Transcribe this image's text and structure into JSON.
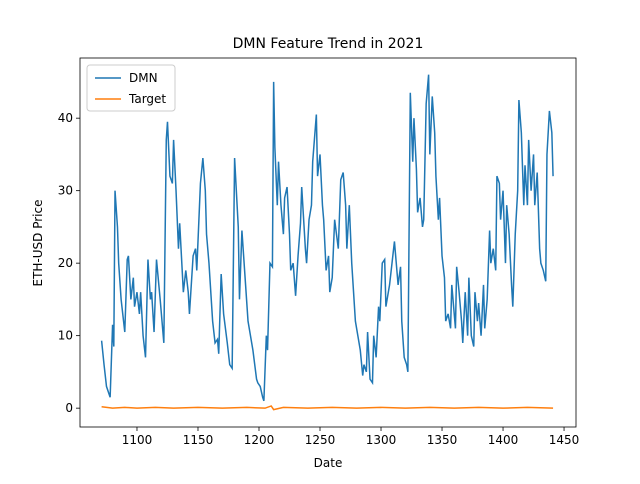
{
  "chart_data": {
    "type": "line",
    "title": "DMN Feature Trend in 2021",
    "x_label": "Date",
    "y_label": "ETH-USD Price",
    "xlim": [
      1053.3,
      1459.8
    ],
    "ylim": [
      -2.6,
      48.3
    ],
    "xticks": [
      1100,
      1150,
      1200,
      1250,
      1300,
      1350,
      1400,
      1450
    ],
    "yticks": [
      0,
      10,
      20,
      30,
      40
    ],
    "legend": "upper left",
    "series": [
      {
        "name": "DMN",
        "color": "#1f77b4",
        "x": [
          1071,
          1073,
          1075,
          1078,
          1080,
          1081,
          1082,
          1084,
          1085,
          1087,
          1089,
          1090,
          1092,
          1093,
          1095,
          1097,
          1098,
          1100,
          1102,
          1103,
          1105,
          1107,
          1109,
          1111,
          1112,
          1114,
          1116,
          1119,
          1122,
          1124,
          1125,
          1127,
          1129,
          1130,
          1132,
          1134,
          1135,
          1138,
          1140,
          1142,
          1143,
          1146,
          1148,
          1149,
          1152,
          1154,
          1156,
          1157,
          1159,
          1162,
          1164,
          1166,
          1167,
          1169,
          1171,
          1174,
          1176,
          1178,
          1180,
          1183,
          1184,
          1186,
          1189,
          1191,
          1193,
          1195,
          1198,
          1199,
          1201,
          1203,
          1204,
          1206,
          1207,
          1209,
          1211,
          1212,
          1213,
          1215,
          1216,
          1218,
          1220,
          1221,
          1223,
          1225,
          1226,
          1228,
          1230,
          1232,
          1234,
          1235,
          1238,
          1239,
          1241,
          1243,
          1244,
          1247,
          1248,
          1250,
          1252,
          1253,
          1255,
          1257,
          1258,
          1260,
          1262,
          1265,
          1267,
          1269,
          1271,
          1272,
          1274,
          1276,
          1279,
          1281,
          1283,
          1285,
          1286,
          1288,
          1289,
          1291,
          1293,
          1294,
          1296,
          1298,
          1299,
          1301,
          1303,
          1304,
          1306,
          1307,
          1309,
          1311,
          1312,
          1314,
          1316,
          1317,
          1319,
          1321,
          1322,
          1324,
          1326,
          1327,
          1329,
          1330,
          1332,
          1334,
          1335,
          1337,
          1339,
          1340,
          1342,
          1344,
          1345,
          1347,
          1348,
          1350,
          1352,
          1353,
          1355,
          1357,
          1358,
          1361,
          1362,
          1364,
          1366,
          1367,
          1369,
          1371,
          1372,
          1374,
          1376,
          1377,
          1379,
          1380,
          1382,
          1384,
          1385,
          1387,
          1389,
          1390,
          1392,
          1394,
          1395,
          1397,
          1398,
          1400,
          1402,
          1403,
          1405,
          1407,
          1408,
          1410,
          1412,
          1413,
          1415,
          1417,
          1418,
          1420,
          1421,
          1423,
          1425,
          1426,
          1428,
          1430,
          1431,
          1433,
          1435,
          1436,
          1438,
          1440,
          1441
        ],
        "values": [
          9.3,
          6,
          3,
          1.5,
          11.5,
          8.5,
          30,
          25,
          20,
          15,
          12,
          10.5,
          20.5,
          21,
          15,
          18,
          14,
          16,
          13,
          16,
          10,
          7,
          20.5,
          15,
          16,
          10.5,
          20.5,
          15,
          9,
          37,
          39.5,
          32,
          31,
          37,
          30,
          22,
          25.5,
          16,
          19,
          16,
          13,
          21,
          22,
          19,
          31,
          34.5,
          30,
          24,
          20,
          12,
          9,
          9.5,
          7.5,
          18.5,
          13,
          9,
          6,
          5.5,
          34.5,
          25,
          15,
          24.5,
          17,
          12,
          10,
          8,
          4,
          3.5,
          3,
          1.5,
          1,
          10,
          8,
          20,
          19.5,
          45,
          36,
          28,
          34,
          28,
          24,
          29,
          30.5,
          24,
          19,
          20,
          15.5,
          21,
          25.5,
          30.5,
          22,
          20,
          26,
          28,
          34,
          40.5,
          32,
          35,
          28,
          26,
          19,
          21,
          16,
          18,
          26,
          22,
          31.5,
          32.5,
          28,
          22,
          28,
          20,
          12,
          10,
          8,
          4.5,
          6,
          5,
          10.5,
          4,
          3.5,
          10,
          7,
          14,
          12,
          20,
          20.5,
          14,
          16,
          17,
          20,
          23,
          21,
          17,
          19.5,
          12,
          7,
          6,
          5,
          43.5,
          34,
          40,
          33,
          27,
          29,
          25,
          26,
          42,
          46,
          35,
          43,
          38,
          32,
          26,
          29,
          21,
          18,
          12,
          13,
          11,
          17,
          11,
          19.5,
          16,
          12,
          9,
          16,
          10,
          18,
          10,
          8.5,
          16,
          12,
          14.5,
          10,
          17,
          11,
          15,
          24.5,
          20,
          22,
          19,
          32,
          31,
          26,
          30,
          20,
          28,
          24,
          17,
          14,
          24,
          30,
          42.5,
          38,
          28,
          33.5,
          28,
          37,
          30,
          35,
          28,
          32.5,
          22,
          20,
          19,
          17.5,
          35,
          41,
          38,
          32
        ]
      },
      {
        "name": "Target",
        "color": "#ff7f0e",
        "x": [
          1071,
          1080,
          1090,
          1100,
          1115,
          1130,
          1150,
          1170,
          1190,
          1205,
          1210,
          1212,
          1220,
          1240,
          1260,
          1280,
          1300,
          1320,
          1340,
          1360,
          1380,
          1400,
          1420,
          1441
        ],
        "values": [
          0.2,
          0,
          0.1,
          0,
          0.1,
          0,
          0.1,
          0,
          0.1,
          0,
          0.3,
          -0.2,
          0.1,
          0,
          0.1,
          0,
          0.1,
          0,
          0.1,
          0,
          0.1,
          0,
          0.1,
          0
        ]
      }
    ]
  }
}
